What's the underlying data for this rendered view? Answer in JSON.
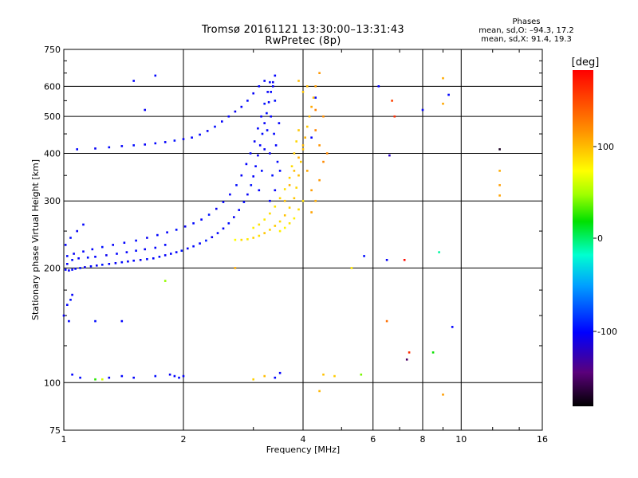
{
  "header": {
    "title_line1": "Tromsø 20161121 13:30:00–13:31:43",
    "title_line2": "RwPretec (8p)"
  },
  "stats": {
    "heading": "Phases",
    "line_o": "mean, sd,O: –94.3, 17.2",
    "line_x": "mean, sd,X:  91.4, 19.3"
  },
  "colorbar": {
    "label": "[deg]",
    "ticks": [
      "100",
      "0",
      "-100"
    ],
    "range": [
      -180,
      180
    ]
  },
  "chart_data": {
    "type": "scatter",
    "xlabel": "Frequency [MHz]",
    "ylabel": "Stationary phase Virtual Height [km]",
    "x_scale": "log",
    "y_scale": "log",
    "xlim": [
      1,
      16
    ],
    "ylim": [
      75,
      750
    ],
    "x_ticks": [
      "1",
      "2",
      "4",
      "6",
      "8",
      "10",
      "16"
    ],
    "y_ticks": [
      "75",
      "100",
      "200",
      "300",
      "400",
      "500",
      "600",
      "750"
    ],
    "grid": true,
    "color_by": "phase [deg]",
    "series": [
      {
        "mode": "O",
        "points": [
          [
            1.01,
            198,
            -100
          ],
          [
            1.03,
            197,
            -104
          ],
          [
            1.05,
            198,
            -98
          ],
          [
            1.07,
            199,
            -101
          ],
          [
            1.1,
            200,
            -96
          ],
          [
            1.13,
            201,
            -105
          ],
          [
            1.17,
            202,
            -99
          ],
          [
            1.21,
            203,
            -102
          ],
          [
            1.25,
            204,
            -94
          ],
          [
            1.3,
            205,
            -100
          ],
          [
            1.35,
            206,
            -103
          ],
          [
            1.4,
            207,
            -97
          ],
          [
            1.45,
            208,
            -101
          ],
          [
            1.5,
            209,
            -99
          ],
          [
            1.56,
            210,
            -104
          ],
          [
            1.62,
            211,
            -98
          ],
          [
            1.68,
            212,
            -100
          ],
          [
            1.74,
            214,
            -96
          ],
          [
            1.8,
            216,
            -102
          ],
          [
            1.86,
            218,
            -99
          ],
          [
            1.92,
            220,
            -101
          ],
          [
            1.98,
            222,
            -95
          ],
          [
            2.05,
            225,
            -103
          ],
          [
            2.12,
            228,
            -98
          ],
          [
            2.2,
            232,
            -100
          ],
          [
            2.28,
            236,
            -92
          ],
          [
            2.36,
            241,
            -105
          ],
          [
            2.44,
            247,
            -99
          ],
          [
            2.52,
            254,
            -101
          ],
          [
            2.6,
            262,
            -97
          ],
          [
            2.68,
            272,
            -104
          ],
          [
            2.76,
            284,
            -100
          ],
          [
            2.84,
            298,
            -98
          ],
          [
            2.9,
            312,
            -102
          ],
          [
            2.96,
            330,
            -96
          ],
          [
            3.0,
            348,
            -101
          ],
          [
            3.04,
            370,
            -99
          ],
          [
            3.08,
            395,
            -103
          ],
          [
            3.12,
            420,
            -100
          ],
          [
            3.16,
            450,
            -98
          ],
          [
            3.2,
            480,
            -102
          ],
          [
            3.24,
            510,
            -97
          ],
          [
            3.28,
            545,
            -101
          ],
          [
            3.32,
            580,
            -99
          ],
          [
            3.36,
            615,
            -104
          ],
          [
            3.4,
            640,
            -100
          ],
          [
            1.02,
            215,
            -98
          ],
          [
            1.06,
            218,
            -103
          ],
          [
            1.12,
            221,
            -99
          ],
          [
            1.18,
            224,
            -101
          ],
          [
            1.25,
            227,
            -95
          ],
          [
            1.33,
            230,
            -102
          ],
          [
            1.42,
            233,
            -100
          ],
          [
            1.52,
            236,
            -97
          ],
          [
            1.62,
            240,
            -104
          ],
          [
            1.72,
            244,
            -99
          ],
          [
            1.82,
            248,
            -101
          ],
          [
            1.92,
            252,
            -96
          ],
          [
            2.02,
            257,
            -103
          ],
          [
            2.12,
            262,
            -98
          ],
          [
            2.22,
            268,
            -100
          ],
          [
            2.32,
            276,
            -94
          ],
          [
            2.42,
            286,
            -105
          ],
          [
            2.52,
            298,
            -99
          ],
          [
            2.62,
            312,
            -101
          ],
          [
            2.72,
            330,
            -97
          ],
          [
            2.8,
            350,
            -102
          ],
          [
            2.88,
            375,
            -100
          ],
          [
            2.95,
            400,
            -98
          ],
          [
            3.02,
            430,
            -103
          ],
          [
            3.08,
            465,
            -99
          ],
          [
            3.14,
            500,
            -101
          ],
          [
            3.2,
            540,
            -96
          ],
          [
            3.26,
            580,
            -102
          ],
          [
            3.3,
            615,
            -100
          ],
          [
            1.01,
            230,
            -100
          ],
          [
            1.04,
            240,
            -97
          ],
          [
            1.08,
            250,
            -103
          ],
          [
            1.12,
            260,
            -99
          ],
          [
            1.02,
            205,
            -101
          ],
          [
            1.05,
            210,
            -98
          ],
          [
            1.09,
            212,
            -102
          ],
          [
            1.15,
            213,
            -96
          ],
          [
            1.2,
            214,
            -100
          ],
          [
            1.28,
            216,
            -104
          ],
          [
            1.36,
            218,
            -99
          ],
          [
            1.44,
            220,
            -101
          ],
          [
            1.52,
            222,
            -97
          ],
          [
            1.6,
            224,
            -103
          ],
          [
            1.7,
            226,
            -100
          ],
          [
            1.8,
            230,
            -98
          ],
          [
            1.02,
            160,
            -100
          ],
          [
            1.04,
            165,
            -96
          ],
          [
            1.0,
            150,
            -104
          ],
          [
            1.03,
            145,
            -99
          ],
          [
            1.05,
            170,
            -101
          ],
          [
            1.08,
            410,
            -100
          ],
          [
            1.2,
            412,
            -103
          ],
          [
            1.3,
            415,
            -98
          ],
          [
            1.4,
            418,
            -101
          ],
          [
            1.5,
            420,
            -97
          ],
          [
            1.6,
            422,
            -102
          ],
          [
            1.7,
            425,
            -99
          ],
          [
            1.8,
            428,
            -101
          ],
          [
            1.9,
            432,
            -96
          ],
          [
            2.0,
            436,
            -103
          ],
          [
            2.1,
            440,
            -100
          ],
          [
            2.2,
            448,
            -98
          ],
          [
            2.3,
            458,
            -102
          ],
          [
            2.4,
            470,
            -97
          ],
          [
            2.5,
            485,
            -101
          ],
          [
            2.6,
            500,
            -99
          ],
          [
            2.7,
            515,
            -104
          ],
          [
            2.8,
            530,
            -100
          ],
          [
            2.9,
            550,
            -98
          ],
          [
            3.0,
            575,
            -102
          ],
          [
            3.1,
            600,
            -99
          ],
          [
            3.2,
            620,
            -101
          ],
          [
            3.3,
            300,
            -100
          ],
          [
            3.35,
            350,
            -96
          ],
          [
            3.3,
            400,
            -104
          ],
          [
            3.38,
            450,
            -99
          ],
          [
            3.32,
            500,
            -101
          ],
          [
            3.4,
            550,
            -97
          ],
          [
            3.36,
            600,
            -103
          ],
          [
            3.42,
            420,
            -100
          ],
          [
            3.45,
            380,
            -98
          ],
          [
            3.4,
            320,
            -102
          ],
          [
            3.5,
            360,
            -99
          ],
          [
            3.48,
            480,
            -101
          ],
          [
            3.1,
            320,
            -100
          ],
          [
            3.15,
            360,
            -97
          ],
          [
            3.2,
            410,
            -103
          ],
          [
            3.25,
            460,
            -99
          ],
          [
            1.05,
            105,
            -100
          ],
          [
            1.1,
            103,
            -98
          ],
          [
            1.3,
            103,
            -102
          ],
          [
            1.4,
            104,
            -99
          ],
          [
            1.5,
            103,
            -101
          ],
          [
            1.7,
            104,
            -97
          ],
          [
            1.85,
            105,
            -103
          ],
          [
            1.9,
            104,
            -100
          ],
          [
            1.95,
            103,
            -98
          ],
          [
            2.0,
            104,
            -101
          ],
          [
            3.4,
            103,
            -99
          ],
          [
            3.5,
            106,
            -101
          ],
          [
            1.5,
            620,
            -100
          ],
          [
            1.7,
            640,
            -98
          ],
          [
            1.6,
            520,
            -103
          ],
          [
            1.4,
            145,
            -100
          ],
          [
            1.2,
            145,
            -97
          ],
          [
            4.2,
            440,
            -100
          ],
          [
            4.3,
            560,
            -98
          ],
          [
            8.0,
            520,
            -102
          ],
          [
            9.3,
            570,
            -99
          ],
          [
            9.5,
            140,
            -100
          ],
          [
            5.7,
            215,
            -96
          ],
          [
            6.2,
            600,
            -101
          ],
          [
            6.5,
            210,
            -102
          ]
        ]
      },
      {
        "mode": "X",
        "points": [
          [
            2.7,
            237,
            72
          ],
          [
            2.8,
            237,
            85
          ],
          [
            2.9,
            238,
            80
          ],
          [
            3.0,
            240,
            90
          ],
          [
            3.1,
            243,
            84
          ],
          [
            3.2,
            247,
            95
          ],
          [
            3.3,
            252,
            88
          ],
          [
            3.4,
            258,
            92
          ],
          [
            3.5,
            265,
            86
          ],
          [
            3.6,
            275,
            96
          ],
          [
            3.7,
            288,
            90
          ],
          [
            3.8,
            305,
            94
          ],
          [
            3.85,
            325,
            88
          ],
          [
            3.9,
            350,
            98
          ],
          [
            3.95,
            380,
            92
          ],
          [
            4.0,
            410,
            96
          ],
          [
            4.05,
            440,
            102
          ],
          [
            4.1,
            470,
            94
          ],
          [
            4.15,
            500,
            100
          ],
          [
            4.2,
            530,
            106
          ],
          [
            4.25,
            560,
            98
          ],
          [
            4.3,
            600,
            110
          ],
          [
            3.0,
            255,
            78
          ],
          [
            3.1,
            260,
            84
          ],
          [
            3.2,
            268,
            80
          ],
          [
            3.3,
            278,
            86
          ],
          [
            3.4,
            290,
            82
          ],
          [
            3.5,
            305,
            88
          ],
          [
            3.6,
            322,
            84
          ],
          [
            3.7,
            345,
            90
          ],
          [
            3.75,
            370,
            86
          ],
          [
            3.8,
            400,
            92
          ],
          [
            3.85,
            430,
            88
          ],
          [
            3.9,
            460,
            94
          ],
          [
            3.6,
            300,
            96
          ],
          [
            3.7,
            330,
            102
          ],
          [
            3.8,
            360,
            98
          ],
          [
            3.9,
            390,
            104
          ],
          [
            4.0,
            420,
            100
          ],
          [
            4.1,
            360,
            106
          ],
          [
            4.2,
            320,
            110
          ],
          [
            4.3,
            300,
            104
          ],
          [
            4.4,
            340,
            112
          ],
          [
            4.5,
            380,
            118
          ],
          [
            4.4,
            420,
            114
          ],
          [
            4.3,
            460,
            120
          ],
          [
            4.5,
            500,
            116
          ],
          [
            4.3,
            520,
            122
          ],
          [
            4.6,
            400,
            118
          ],
          [
            4.2,
            280,
            108
          ],
          [
            3.5,
            250,
            78
          ],
          [
            3.6,
            255,
            75
          ],
          [
            3.7,
            262,
            82
          ],
          [
            3.8,
            270,
            78
          ],
          [
            3.9,
            285,
            86
          ],
          [
            4.0,
            300,
            84
          ],
          [
            4.1,
            600,
            100
          ],
          [
            4.0,
            580,
            94
          ],
          [
            3.9,
            620,
            98
          ],
          [
            4.4,
            650,
            112
          ],
          [
            4.5,
            105,
            96
          ],
          [
            4.8,
            104,
            92
          ],
          [
            3.2,
            104,
            98
          ],
          [
            3.0,
            102,
            90
          ],
          [
            4.4,
            95,
            100
          ],
          [
            2.7,
            200,
            104
          ],
          [
            12.5,
            330,
            110
          ],
          [
            12.5,
            360,
            104
          ],
          [
            12.5,
            310,
            108
          ],
          [
            9.0,
            630,
            104
          ],
          [
            9.0,
            540,
            106
          ],
          [
            9.0,
            93,
            110
          ]
        ]
      }
    ],
    "extra_scatter": [
      [
        6.7,
        550,
        150
      ],
      [
        6.8,
        500,
        160
      ],
      [
        6.6,
        395,
        -120
      ],
      [
        7.2,
        210,
        175
      ],
      [
        6.5,
        145,
        130
      ],
      [
        7.4,
        120,
        160
      ],
      [
        7.3,
        115,
        -150
      ],
      [
        8.5,
        120,
        20
      ],
      [
        8.8,
        220,
        -10
      ],
      [
        12.5,
        410,
        -170
      ],
      [
        5.3,
        200,
        80
      ],
      [
        5.6,
        105,
        40
      ],
      [
        1.2,
        102,
        25
      ],
      [
        1.25,
        102,
        60
      ],
      [
        1.8,
        185,
        45
      ]
    ]
  }
}
